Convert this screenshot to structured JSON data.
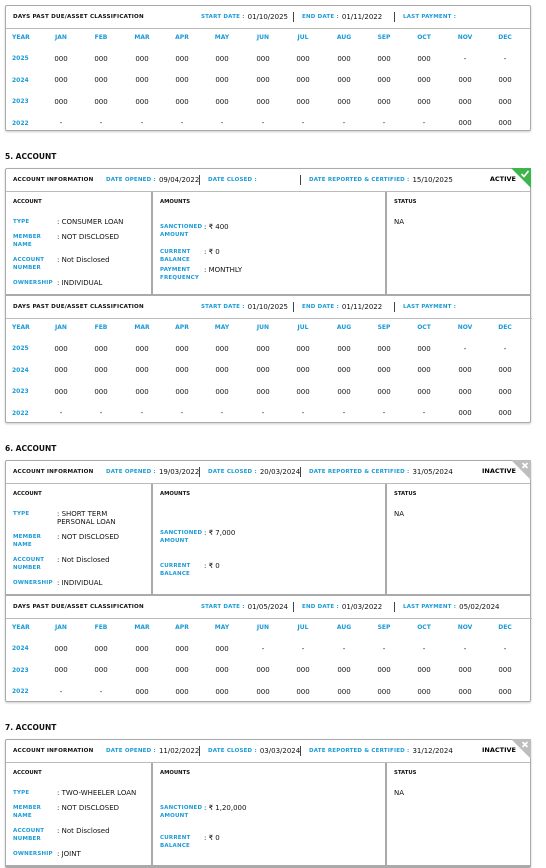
{
  "dpd_top": {
    "title": "DAYS PAST DUE/ASSET CLASSIFICATION",
    "start_label": "START DATE :",
    "start": "01/10/2025",
    "end_label": "END DATE :",
    "end": "01/11/2022",
    "last_label": "LAST PAYMENT :",
    "columns": [
      "YEAR",
      "JAN",
      "FEB",
      "MAR",
      "APR",
      "MAY",
      "JUN",
      "JUL",
      "AUG",
      "SEP",
      "OCT",
      "NOV",
      "DEC"
    ],
    "rows": [
      {
        "year": "2025",
        "values": [
          "000",
          "000",
          "000",
          "000",
          "000",
          "000",
          "000",
          "000",
          "000",
          "000",
          "-",
          "-"
        ]
      },
      {
        "year": "2024",
        "values": [
          "000",
          "000",
          "000",
          "000",
          "000",
          "000",
          "000",
          "000",
          "000",
          "000",
          "000",
          "000"
        ]
      },
      {
        "year": "2023",
        "values": [
          "000",
          "000",
          "000",
          "000",
          "000",
          "000",
          "000",
          "000",
          "000",
          "000",
          "000",
          "000"
        ]
      },
      {
        "year": "2022",
        "values": [
          "-",
          "-",
          "-",
          "-",
          "-",
          "-",
          "-",
          "-",
          "-",
          "-",
          "000",
          "000"
        ]
      }
    ]
  },
  "accounts": [
    {
      "heading": "5. ACCOUNT",
      "info": {
        "title": "ACCOUNT INFORMATION",
        "opened_label": "DATE OPENED :",
        "opened": "09/04/2022",
        "closed_label": "DATE CLOSED :",
        "reported_label": "DATE REPORTED & CERTIFIED :",
        "reported": "15/10/2025",
        "status": "ACTIVE",
        "badge_color": "#3cb54a",
        "badge_icon": "check"
      },
      "account": {
        "title": "ACCOUNT",
        "fields": [
          {
            "label": "TYPE",
            "value": ": CONSUMER LOAN"
          },
          {
            "label": "MEMBER NAME",
            "value": ": NOT DISCLOSED"
          },
          {
            "label": "ACCOUNT NUMBER",
            "value": ": Not Disclosed"
          },
          {
            "label": "OWNERSHIP",
            "value": ": INDIVIDUAL"
          }
        ]
      },
      "amounts": {
        "title": "AMOUNTS",
        "fields": [
          {
            "label": "SANCTIONED AMOUNT",
            "value": ": ₹ 400"
          },
          {
            "label": "CURRENT BALANCE",
            "value": ": ₹ 0"
          },
          {
            "label": "PAYMENT FREQUENCY",
            "value": ": MONTHLY"
          }
        ]
      },
      "status": {
        "title": "STATUS",
        "value": "NA"
      },
      "dpd": {
        "title": "DAYS PAST DUE/ASSET CLASSIFICATION",
        "start_label": "START DATE :",
        "start": "01/10/2025",
        "end_label": "END DATE :",
        "end": "01/11/2022",
        "last_label": "LAST PAYMENT :",
        "columns": [
          "YEAR",
          "JAN",
          "FEB",
          "MAR",
          "APR",
          "MAY",
          "JUN",
          "JUL",
          "AUG",
          "SEP",
          "OCT",
          "NOV",
          "DEC"
        ],
        "rows": [
          {
            "year": "2025",
            "values": [
              "000",
              "000",
              "000",
              "000",
              "000",
              "000",
              "000",
              "000",
              "000",
              "000",
              "-",
              "-"
            ]
          },
          {
            "year": "2024",
            "values": [
              "000",
              "000",
              "000",
              "000",
              "000",
              "000",
              "000",
              "000",
              "000",
              "000",
              "000",
              "000"
            ]
          },
          {
            "year": "2023",
            "values": [
              "000",
              "000",
              "000",
              "000",
              "000",
              "000",
              "000",
              "000",
              "000",
              "000",
              "000",
              "000"
            ]
          },
          {
            "year": "2022",
            "values": [
              "-",
              "-",
              "-",
              "-",
              "-",
              "-",
              "-",
              "-",
              "-",
              "-",
              "000",
              "000"
            ]
          }
        ]
      }
    },
    {
      "heading": "6. ACCOUNT",
      "info": {
        "title": "ACCOUNT INFORMATION",
        "opened_label": "DATE OPENED :",
        "opened": "19/03/2022",
        "closed_label": "DATE CLOSED :",
        "closed": "20/03/2024",
        "reported_label": "DATE REPORTED & CERTIFIED :",
        "reported": "31/05/2024",
        "status": "INACTIVE",
        "badge_color": "#bdbdbd",
        "badge_icon": "cross"
      },
      "account": {
        "title": "ACCOUNT",
        "fields": [
          {
            "label": "TYPE",
            "value": ": SHORT TERM PERSONAL LOAN"
          },
          {
            "label": "MEMBER NAME",
            "value": ": NOT DISCLOSED"
          },
          {
            "label": "ACCOUNT NUMBER",
            "value": ": Not Disclosed"
          },
          {
            "label": "OWNERSHIP",
            "value": ": INDIVIDUAL"
          }
        ]
      },
      "amounts": {
        "title": "AMOUNTS",
        "fields": [
          {
            "label": "SANCTIONED AMOUNT",
            "value": ": ₹ 7,000"
          },
          {
            "label": "CURRENT BALANCE",
            "value": ": ₹ 0"
          }
        ]
      },
      "status": {
        "title": "STATUS",
        "value": "NA"
      },
      "dpd": {
        "title": "DAYS PAST DUE/ASSET CLASSIFICATION",
        "start_label": "START DATE :",
        "start": "01/05/2024",
        "end_label": "END DATE :",
        "end": "01/03/2022",
        "last_label": "LAST PAYMENT :",
        "last": "05/02/2024",
        "columns": [
          "YEAR",
          "JAN",
          "FEB",
          "MAR",
          "APR",
          "MAY",
          "JUN",
          "JUL",
          "AUG",
          "SEP",
          "OCT",
          "NOV",
          "DEC"
        ],
        "rows": [
          {
            "year": "2024",
            "values": [
              "000",
              "000",
              "000",
              "000",
              "000",
              "-",
              "-",
              "-",
              "-",
              "-",
              "-",
              "-"
            ]
          },
          {
            "year": "2023",
            "values": [
              "000",
              "000",
              "000",
              "000",
              "000",
              "000",
              "000",
              "000",
              "000",
              "000",
              "000",
              "000"
            ]
          },
          {
            "year": "2022",
            "values": [
              "-",
              "-",
              "000",
              "000",
              "000",
              "000",
              "000",
              "000",
              "000",
              "000",
              "000",
              "000"
            ]
          }
        ]
      }
    },
    {
      "heading": "7. ACCOUNT",
      "info": {
        "title": "ACCOUNT INFORMATION",
        "opened_label": "DATE OPENED :",
        "opened": "11/02/2022",
        "closed_label": "DATE CLOSED :",
        "closed": "03/03/2024",
        "reported_label": "DATE REPORTED & CERTIFIED :",
        "reported": "31/12/2024",
        "status": "INACTIVE",
        "badge_color": "#bdbdbd",
        "badge_icon": "cross"
      },
      "account": {
        "title": "ACCOUNT",
        "fields": [
          {
            "label": "TYPE",
            "value": ": TWO-WHEELER LOAN"
          },
          {
            "label": "MEMBER NAME",
            "value": ": NOT DISCLOSED"
          },
          {
            "label": "ACCOUNT NUMBER",
            "value": ": Not Disclosed"
          },
          {
            "label": "OWNERSHIP",
            "value": ": JOINT"
          }
        ]
      },
      "amounts": {
        "title": "AMOUNTS",
        "fields": [
          {
            "label": "SANCTIONED AMOUNT",
            "value": ": ₹ 1,20,000"
          },
          {
            "label": "CURRENT BALANCE",
            "value": ": ₹ 0"
          }
        ]
      },
      "status": {
        "title": "STATUS",
        "value": "NA"
      }
    }
  ]
}
